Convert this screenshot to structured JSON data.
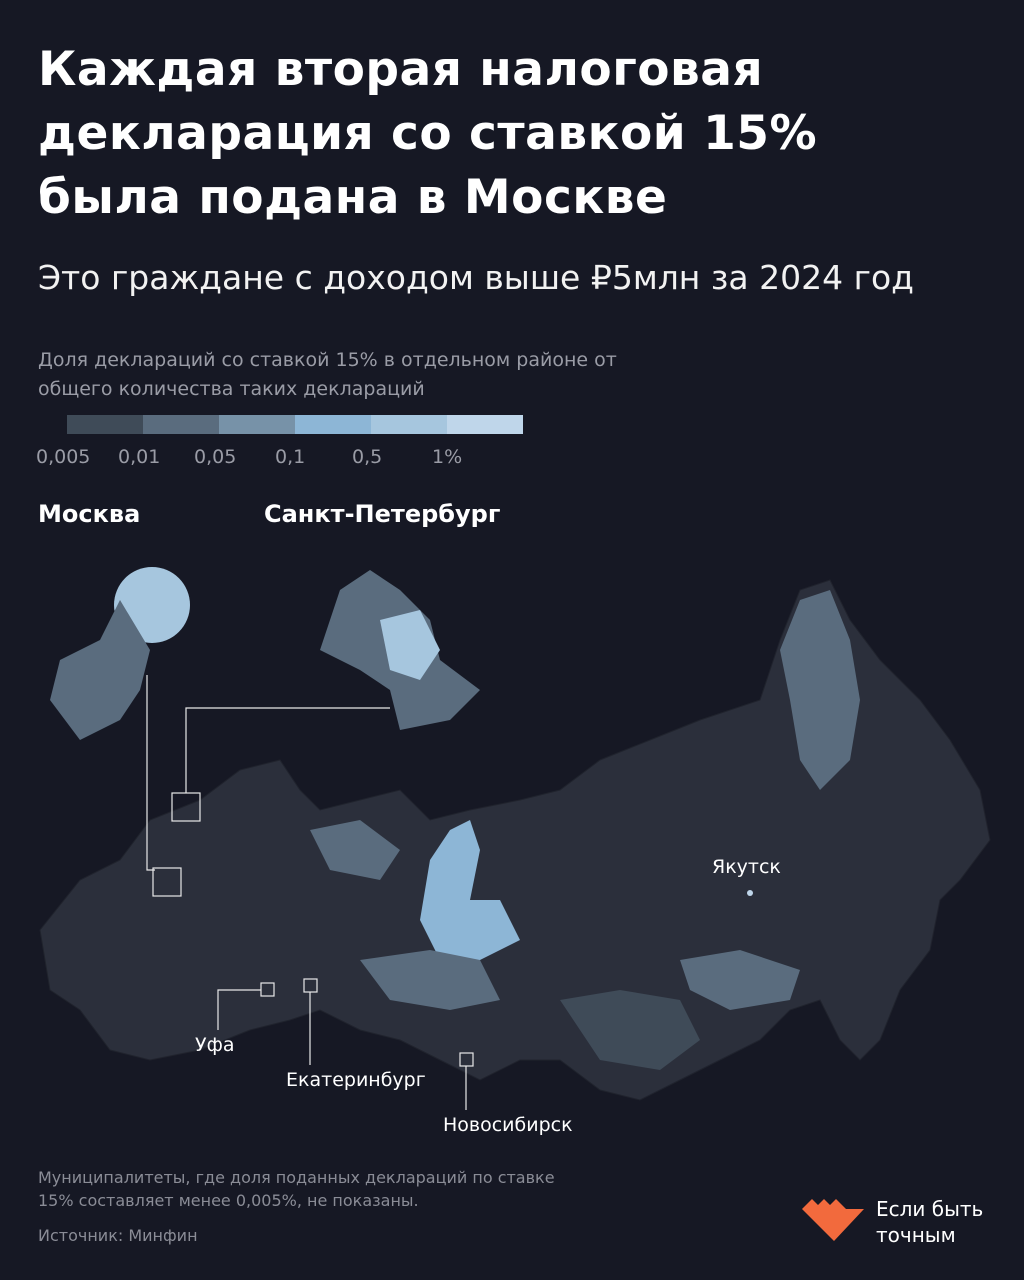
{
  "title": "Каждая вторая налоговая декларация со ставкой 15% была подана в Москве",
  "subtitle": "Это граждане с доходом выше ₽5млн за 2024 год",
  "legend": {
    "title": "Доля деклараций со ставкой 15% в отдельном районе от общего количества таких деклараций",
    "labels": [
      "0,005",
      "0,01",
      "0,05",
      "0,1",
      "0,5",
      "1%"
    ],
    "colors": [
      "#3f4b58",
      "#5a6c7e",
      "#7792a8",
      "#8db6d6",
      "#a6c6de",
      "#bfd6ea"
    ]
  },
  "insets": {
    "moscow": "Москва",
    "spb": "Санкт-Петербург"
  },
  "cities": {
    "yakutsk": "Якутск",
    "ufa": "Уфа",
    "yekaterinburg": "Екатеринбург",
    "novosibirsk": "Новосибирск"
  },
  "map_colors": {
    "base": "#2b2f3b",
    "border": "#1f222c"
  },
  "note": "Муниципалитеты, где доля поданных деклараций по ставке 15% составляет менее 0,005%, не показаны.",
  "source": "Источник: Минфин",
  "brand": {
    "line1": "Если быть",
    "line2": "точным",
    "color": "#f26a3d"
  }
}
